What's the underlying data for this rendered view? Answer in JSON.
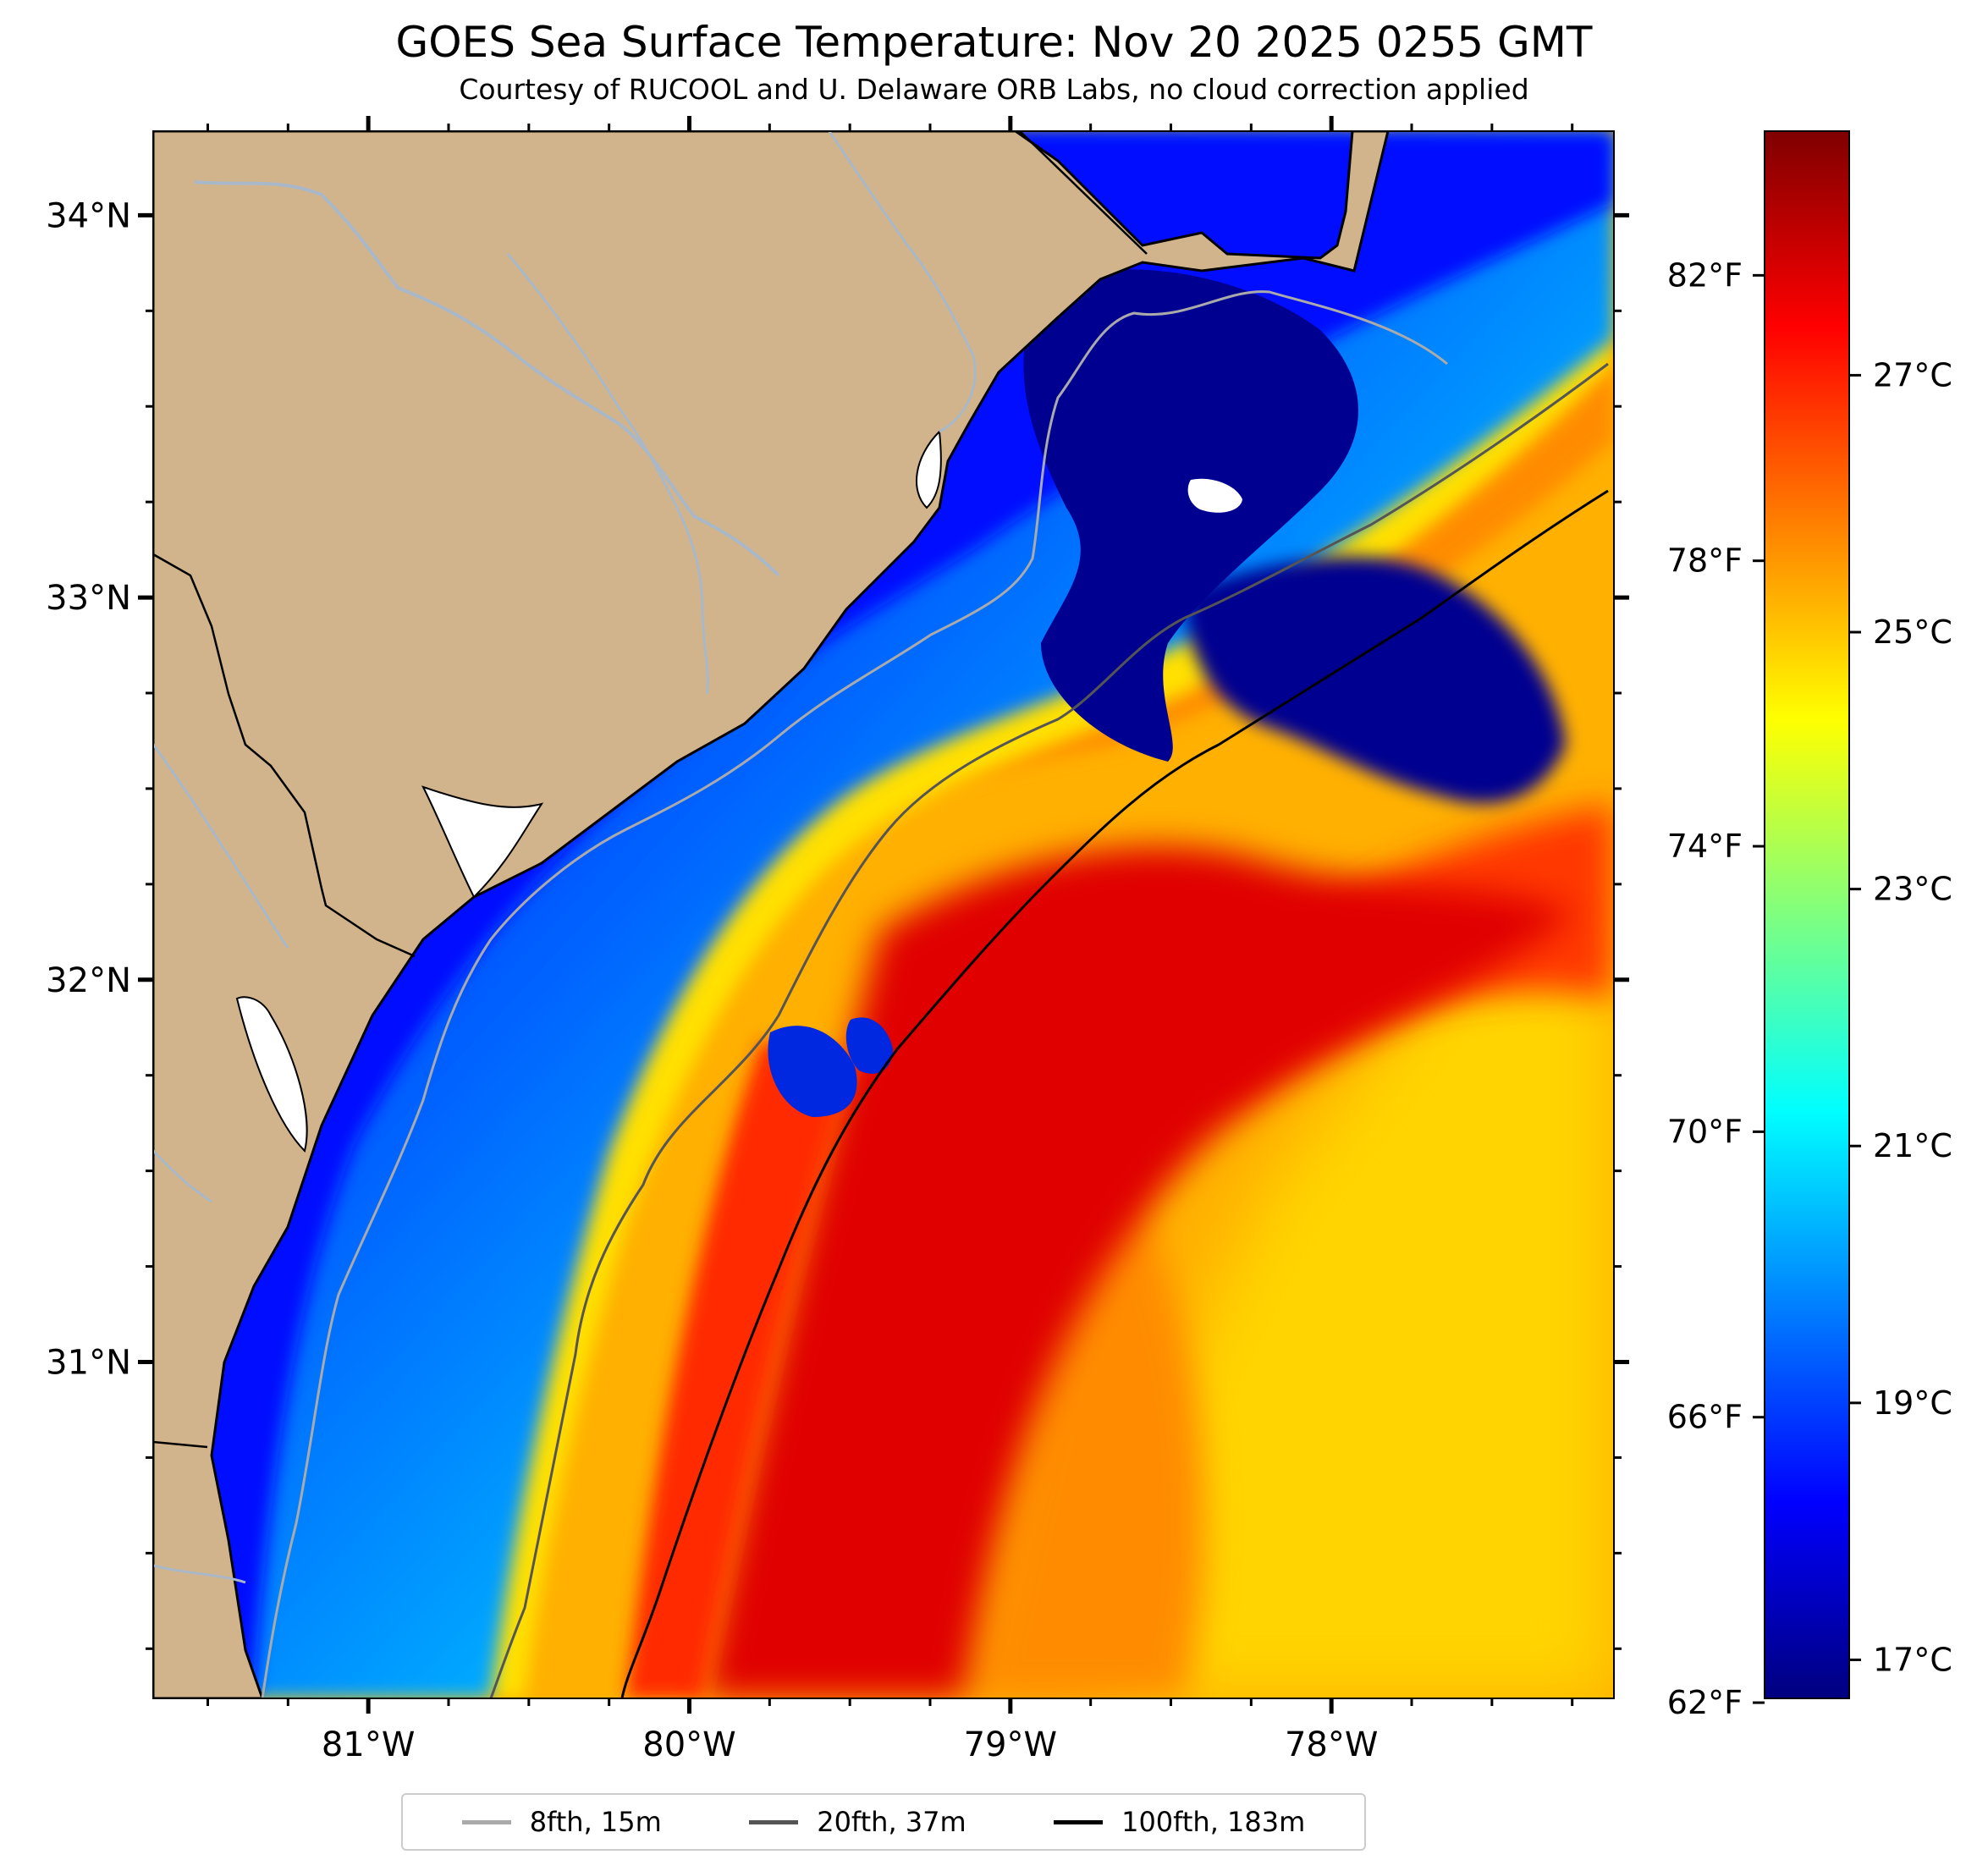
{
  "header": {
    "title": "GOES Sea Surface Temperature: Nov 20 2025 0255 GMT",
    "subtitle": "Courtesy of RUCOOL and U. Delaware ORB Labs, no cloud correction applied"
  },
  "map": {
    "lon_range": [
      -81.67,
      -77.12
    ],
    "lat_range": [
      30.12,
      34.22
    ],
    "lat_ticks": [
      {
        "value": 34,
        "label": "34°N"
      },
      {
        "value": 33,
        "label": "33°N"
      },
      {
        "value": 32,
        "label": "32°N"
      },
      {
        "value": 31,
        "label": "31°N"
      }
    ],
    "lon_ticks": [
      {
        "value": -81,
        "label": "81°W"
      },
      {
        "value": -80,
        "label": "80°W"
      },
      {
        "value": -79,
        "label": "79°W"
      },
      {
        "value": -78,
        "label": "78°W"
      }
    ],
    "colors": {
      "land": "#d2b48c",
      "river": "#a8b8c8",
      "coast": "#000000",
      "cloud": "#ffffff"
    }
  },
  "colorbar": {
    "range_c": [
      16.7,
      28.9
    ],
    "celsius_ticks": [
      {
        "value": 17,
        "label": "17°C"
      },
      {
        "value": 19,
        "label": "19°C"
      },
      {
        "value": 21,
        "label": "21°C"
      },
      {
        "value": 23,
        "label": "23°C"
      },
      {
        "value": 25,
        "label": "25°C"
      },
      {
        "value": 27,
        "label": "27°C"
      }
    ],
    "fahrenheit_ticks": [
      {
        "value": 62,
        "label": "62°F"
      },
      {
        "value": 66,
        "label": "66°F"
      },
      {
        "value": 70,
        "label": "70°F"
      },
      {
        "value": 74,
        "label": "74°F"
      },
      {
        "value": 78,
        "label": "78°F"
      },
      {
        "value": 82,
        "label": "82°F"
      }
    ],
    "colormap": [
      "#00007f",
      "#0000ff",
      "#007fff",
      "#00ffff",
      "#7fff7f",
      "#ffff00",
      "#ff7f00",
      "#ff0000",
      "#7f0000"
    ]
  },
  "legend": {
    "items": [
      {
        "label": "8fth, 15m",
        "color": "#aaaaaa"
      },
      {
        "label": "20fth, 37m",
        "color": "#555555"
      },
      {
        "label": "100fth, 183m",
        "color": "#000000"
      }
    ]
  }
}
